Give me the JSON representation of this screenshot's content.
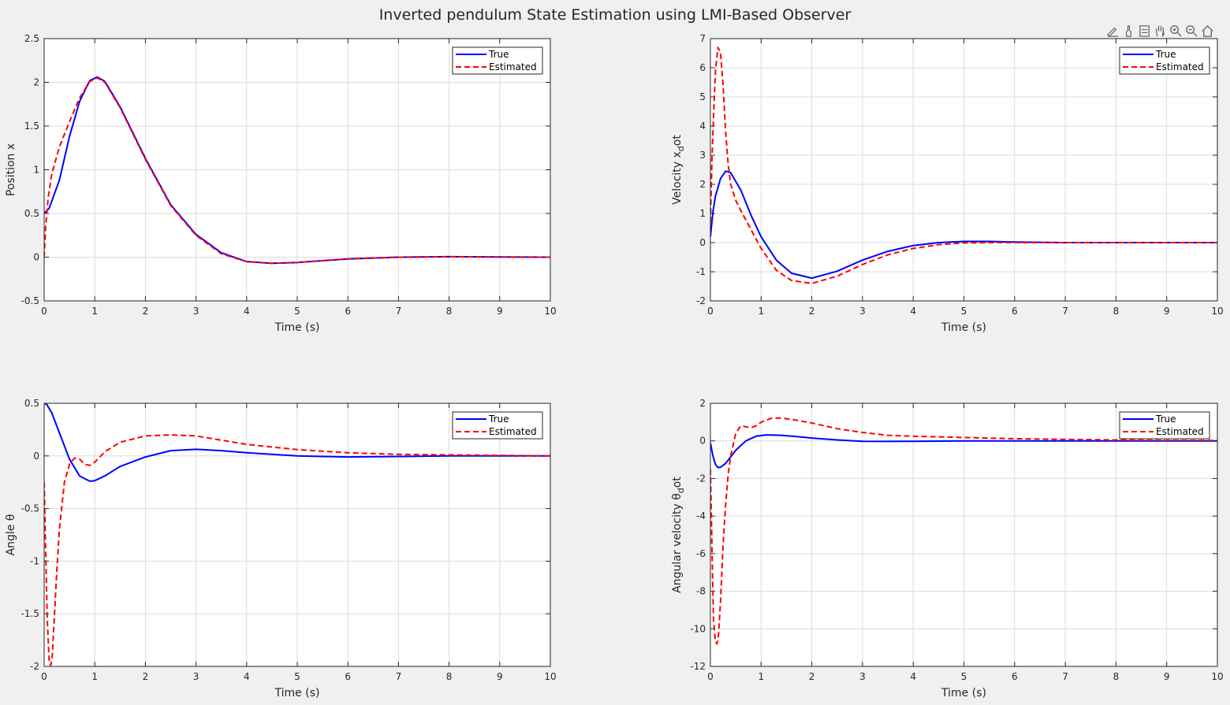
{
  "figure": {
    "title": "Inverted pendulum State Estimation using LMI-Based Observer"
  },
  "toolbar": {
    "icons": [
      "edit-plot-icon",
      "brush-icon",
      "data-tips-icon",
      "pan-icon",
      "zoom-in-icon",
      "zoom-out-icon",
      "home-icon"
    ]
  },
  "colors": {
    "true_series": "#0000ff",
    "estimated_series": "#ff0000",
    "grid": "#dcdcdc",
    "axes_bg": "#ffffff",
    "figure_bg": "#f0f0f0"
  },
  "chart_data": [
    {
      "type": "line",
      "xlabel": "Time (s)",
      "ylabel": "Position x",
      "xlim": [
        0,
        10
      ],
      "ylim": [
        -0.5,
        2.5
      ],
      "xticks": [
        "0",
        "1",
        "2",
        "3",
        "4",
        "5",
        "6",
        "7",
        "8",
        "9",
        "10"
      ],
      "yticks": [
        "-0.5",
        "0",
        "0.5",
        "1",
        "1.5",
        "2",
        "2.5"
      ],
      "grid": true,
      "legend": "top-right",
      "series": [
        {
          "name": "True",
          "style": "solid",
          "x": [
            0,
            0.1,
            0.3,
            0.5,
            0.7,
            0.9,
            1.05,
            1.2,
            1.5,
            2,
            2.5,
            3,
            3.5,
            4,
            4.5,
            5,
            6,
            7,
            8,
            9,
            10
          ],
          "y": [
            0.5,
            0.56,
            0.88,
            1.38,
            1.78,
            2.02,
            2.06,
            2.01,
            1.72,
            1.13,
            0.6,
            0.26,
            0.05,
            -0.05,
            -0.07,
            -0.06,
            -0.02,
            0.0,
            0.005,
            0.002,
            0.0
          ]
        },
        {
          "name": "Estimated",
          "style": "dashed",
          "x": [
            0,
            0.03,
            0.08,
            0.15,
            0.3,
            0.5,
            0.7,
            0.9,
            1.05,
            1.2,
            1.5,
            2,
            2.5,
            3,
            3.5,
            4,
            4.5,
            5,
            6,
            7,
            8,
            9,
            10
          ],
          "y": [
            0,
            0.35,
            0.68,
            0.95,
            1.26,
            1.55,
            1.82,
            2.01,
            2.05,
            2.0,
            1.71,
            1.12,
            0.59,
            0.25,
            0.04,
            -0.05,
            -0.07,
            -0.06,
            -0.02,
            0.0,
            0.005,
            0.002,
            0.0
          ]
        }
      ]
    },
    {
      "type": "line",
      "xlabel": "Time (s)",
      "ylabel": "Velocity x_dot",
      "xlim": [
        0,
        10
      ],
      "ylim": [
        -2,
        7
      ],
      "xticks": [
        "0",
        "1",
        "2",
        "3",
        "4",
        "5",
        "6",
        "7",
        "8",
        "9",
        "10"
      ],
      "yticks": [
        "-2",
        "-1",
        "0",
        "1",
        "2",
        "3",
        "4",
        "5",
        "6",
        "7"
      ],
      "grid": true,
      "legend": "top-right",
      "series": [
        {
          "name": "True",
          "style": "solid",
          "x": [
            0,
            0.05,
            0.1,
            0.2,
            0.3,
            0.4,
            0.6,
            0.8,
            1,
            1.3,
            1.6,
            2,
            2.5,
            3,
            3.5,
            4,
            4.5,
            5,
            5.5,
            6,
            7,
            8,
            9,
            10
          ],
          "y": [
            0.2,
            1.05,
            1.6,
            2.2,
            2.45,
            2.4,
            1.8,
            0.95,
            0.2,
            -0.6,
            -1.05,
            -1.22,
            -0.98,
            -0.6,
            -0.3,
            -0.1,
            0.0,
            0.04,
            0.04,
            0.02,
            0.0,
            0.0,
            0.0,
            0.0
          ]
        },
        {
          "name": "Estimated",
          "style": "dashed",
          "x": [
            0,
            0.03,
            0.06,
            0.1,
            0.15,
            0.2,
            0.25,
            0.3,
            0.35,
            0.4,
            0.5,
            0.6,
            0.8,
            1,
            1.3,
            1.6,
            2,
            2.5,
            3,
            3.5,
            4,
            4.5,
            5,
            5.5,
            6,
            7,
            8,
            9,
            10
          ],
          "y": [
            0.7,
            2.8,
            4.3,
            5.9,
            6.7,
            6.5,
            5.4,
            3.8,
            2.7,
            2.0,
            1.45,
            1.1,
            0.45,
            -0.2,
            -0.95,
            -1.3,
            -1.4,
            -1.15,
            -0.75,
            -0.42,
            -0.2,
            -0.07,
            -0.01,
            0.0,
            0.0,
            0.0,
            0.0,
            0.0,
            0.0
          ]
        }
      ]
    },
    {
      "type": "line",
      "xlabel": "Time (s)",
      "ylabel": "Angle θ",
      "xlim": [
        0,
        10
      ],
      "ylim": [
        -2,
        0.5
      ],
      "xticks": [
        "0",
        "1",
        "2",
        "3",
        "4",
        "5",
        "6",
        "7",
        "8",
        "9",
        "10"
      ],
      "yticks": [
        "-2",
        "-1.5",
        "-1",
        "-0.5",
        "0",
        "0.5"
      ],
      "grid": true,
      "legend": "top-right",
      "series": [
        {
          "name": "True",
          "style": "solid",
          "x": [
            0,
            0.05,
            0.15,
            0.3,
            0.5,
            0.7,
            0.9,
            1,
            1.2,
            1.5,
            2,
            2.5,
            3,
            3.5,
            4,
            5,
            6,
            7,
            8,
            9,
            10
          ],
          "y": [
            0.5,
            0.49,
            0.41,
            0.22,
            -0.03,
            -0.19,
            -0.24,
            -0.235,
            -0.19,
            -0.1,
            -0.01,
            0.05,
            0.063,
            0.05,
            0.03,
            0.0,
            -0.01,
            -0.005,
            0.0,
            0.0,
            0.0
          ]
        },
        {
          "name": "Estimated",
          "style": "dashed",
          "x": [
            0,
            0.03,
            0.06,
            0.1,
            0.13,
            0.16,
            0.2,
            0.25,
            0.3,
            0.4,
            0.5,
            0.6,
            0.7,
            0.8,
            0.9,
            1.0,
            1.2,
            1.5,
            2,
            2.5,
            3,
            3.5,
            4,
            5,
            6,
            7,
            8,
            9,
            10
          ],
          "y": [
            -0.25,
            -0.9,
            -1.55,
            -1.95,
            -1.99,
            -1.9,
            -1.55,
            -1.1,
            -0.7,
            -0.25,
            -0.08,
            -0.02,
            -0.03,
            -0.08,
            -0.09,
            -0.06,
            0.04,
            0.13,
            0.19,
            0.2,
            0.19,
            0.15,
            0.11,
            0.06,
            0.03,
            0.015,
            0.01,
            0.005,
            0.0
          ]
        }
      ]
    },
    {
      "type": "line",
      "xlabel": "Time (s)",
      "ylabel": "Angular velocity θ_dot",
      "xlim": [
        0,
        10
      ],
      "ylim": [
        -12,
        2
      ],
      "xticks": [
        "0",
        "1",
        "2",
        "3",
        "4",
        "5",
        "6",
        "7",
        "8",
        "9",
        "10"
      ],
      "yticks": [
        "-12",
        "-10",
        "-8",
        "-6",
        "-4",
        "-2",
        "0",
        "2"
      ],
      "grid": true,
      "legend": "top-right",
      "series": [
        {
          "name": "True",
          "style": "solid",
          "x": [
            0,
            0.05,
            0.1,
            0.15,
            0.2,
            0.3,
            0.5,
            0.7,
            0.9,
            1.1,
            1.4,
            1.7,
            2,
            2.5,
            3,
            3.5,
            4,
            5,
            6,
            7,
            8,
            9,
            10
          ],
          "y": [
            -0.1,
            -0.8,
            -1.25,
            -1.42,
            -1.4,
            -1.2,
            -0.5,
            0.0,
            0.25,
            0.32,
            0.3,
            0.23,
            0.15,
            0.05,
            -0.02,
            -0.03,
            -0.02,
            0.0,
            0.0,
            0.0,
            0.0,
            0.0,
            0.0
          ]
        },
        {
          "name": "Estimated",
          "style": "dashed",
          "x": [
            0,
            0.03,
            0.06,
            0.1,
            0.13,
            0.16,
            0.2,
            0.25,
            0.3,
            0.35,
            0.4,
            0.5,
            0.6,
            0.7,
            0.8,
            0.9,
            1,
            1.2,
            1.4,
            1.7,
            2,
            2.5,
            3,
            3.5,
            4,
            5,
            6,
            7,
            8,
            9,
            10
          ],
          "y": [
            -1.5,
            -5.5,
            -9.5,
            -10.7,
            -10.8,
            -10.3,
            -8.5,
            -5.5,
            -3.4,
            -1.8,
            -0.8,
            0.4,
            0.8,
            0.75,
            0.7,
            0.8,
            1.0,
            1.2,
            1.22,
            1.1,
            0.95,
            0.65,
            0.45,
            0.3,
            0.25,
            0.18,
            0.12,
            0.08,
            0.05,
            0.03,
            0.02
          ]
        }
      ]
    }
  ]
}
